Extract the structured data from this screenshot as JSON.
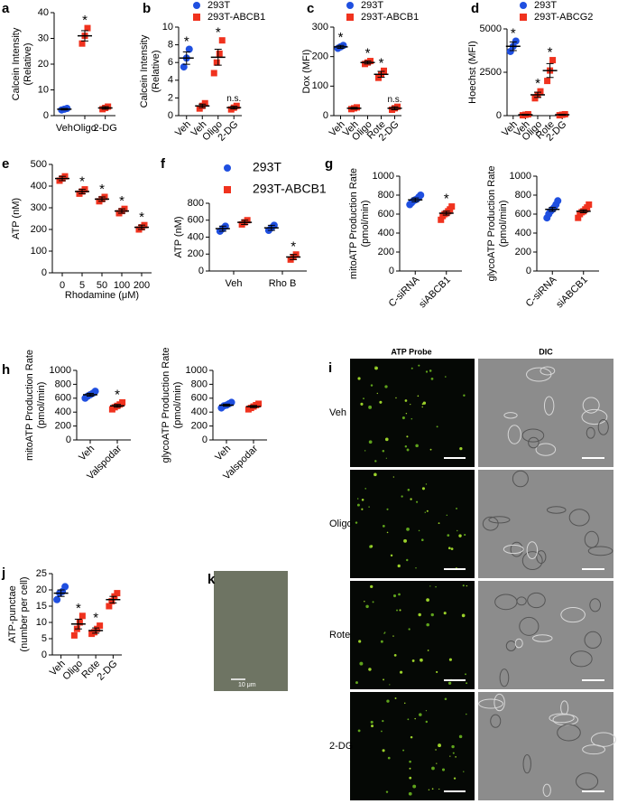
{
  "chart_data": [
    {
      "type": "dot",
      "panel": "a",
      "ylabel": [
        "Calcein Intensity",
        "(Relative)"
      ],
      "categories": [
        "Veh",
        "Oligo",
        "2-DG"
      ],
      "ylim": [
        0,
        40
      ],
      "yticks": [
        0,
        10,
        20,
        30,
        40
      ],
      "series": [
        {
          "color": "#1f4fe0",
          "marker": "circle",
          "values": [
            2.5,
            null,
            null
          ],
          "errors": [
            0.3,
            null,
            null
          ],
          "points": [
            [
              2.2,
              2.5,
              2.8
            ],
            null,
            null
          ],
          "annotations": [
            null,
            null,
            null
          ]
        },
        {
          "color": "#f0321e",
          "marker": "square",
          "values": [
            null,
            31,
            3
          ],
          "errors": [
            null,
            2,
            0.5
          ],
          "points": [
            null,
            [
              28,
              31,
              34
            ],
            [
              2.5,
              3,
              3.5
            ]
          ],
          "annotations": [
            null,
            "*",
            null
          ]
        }
      ]
    },
    {
      "type": "dot",
      "panel": "b",
      "ylabel": [
        "Calcein Intensity",
        "(Relative)"
      ],
      "categories": [
        "Veh",
        "Veh",
        "Oligo",
        "2-DG"
      ],
      "ylim": [
        0,
        10
      ],
      "yticks": [
        0,
        2,
        4,
        6,
        8,
        10
      ],
      "series": [
        {
          "name": "293T",
          "color": "#1f4fe0",
          "marker": "circle",
          "values": [
            6.5,
            null,
            null,
            null
          ],
          "errors": [
            0.7,
            null,
            null,
            null
          ],
          "points": [
            [
              5.5,
              6.5,
              7.5
            ],
            null,
            null,
            null
          ],
          "annotations": [
            "*",
            null,
            null,
            null
          ]
        },
        {
          "name": "293T-ABCB1",
          "color": "#f0321e",
          "marker": "square",
          "values": [
            null,
            1.1,
            6.6,
            0.9
          ],
          "errors": [
            null,
            0.2,
            0.9,
            0.15
          ],
          "points": [
            null,
            [
              0.8,
              1.1,
              1.4
            ],
            [
              4.8,
              6,
              7,
              8.5
            ],
            [
              0.7,
              0.9,
              1.1
            ]
          ],
          "annotations": [
            null,
            null,
            "*",
            "n.s."
          ]
        }
      ]
    },
    {
      "type": "dot",
      "panel": "c",
      "ylabel": [
        "Dox (MFI)"
      ],
      "categories": [
        "Veh",
        "Veh",
        "Oligo",
        "Rote",
        "2-DG"
      ],
      "ylim": [
        0,
        300
      ],
      "yticks": [
        0,
        100,
        200,
        300
      ],
      "series": [
        {
          "name": "293T",
          "color": "#1f4fe0",
          "marker": "circle",
          "values": [
            233,
            null,
            null,
            null,
            null
          ],
          "errors": [
            5,
            null,
            null,
            null,
            null
          ],
          "points": [
            [
              228,
              233,
              238
            ],
            null,
            null,
            null,
            null
          ],
          "annotations": [
            "*",
            null,
            null,
            null,
            null
          ]
        },
        {
          "name": "293T-ABCB1",
          "color": "#f0321e",
          "marker": "square",
          "values": [
            null,
            25,
            180,
            140,
            25
          ],
          "errors": [
            null,
            3,
            5,
            10,
            5
          ],
          "points": [
            null,
            [
              22,
              25,
              28
            ],
            [
              175,
              180,
              185
            ],
            [
              128,
              140,
              152
            ],
            [
              20,
              25,
              30
            ]
          ],
          "annotations": [
            null,
            null,
            "*",
            "*",
            "n.s."
          ]
        }
      ]
    },
    {
      "type": "dot",
      "panel": "d",
      "ylabel": [
        "Hoechst (MFI)"
      ],
      "categories": [
        "Veh",
        "Veh",
        "Oligo",
        "Rote",
        "2-DG"
      ],
      "ylim": [
        0,
        5000
      ],
      "yticks": [
        0,
        2500,
        5000
      ],
      "series": [
        {
          "name": "293T",
          "color": "#1f4fe0",
          "marker": "circle",
          "values": [
            4000,
            null,
            null,
            null,
            null
          ],
          "errors": [
            250,
            null,
            null,
            null,
            null
          ],
          "points": [
            [
              3700,
              4000,
              4300
            ],
            null,
            null,
            null,
            null
          ],
          "annotations": [
            "*",
            null,
            null,
            null,
            null
          ]
        },
        {
          "name": "293T-ABCG2",
          "color": "#f0321e",
          "marker": "square",
          "values": [
            null,
            50,
            1200,
            2600,
            50
          ],
          "errors": [
            null,
            30,
            150,
            400,
            30
          ],
          "points": [
            null,
            [
              20,
              50,
              80
            ],
            [
              1000,
              1200,
              1400
            ],
            [
              2000,
              2600,
              3200
            ],
            [
              20,
              50,
              80
            ]
          ],
          "annotations": [
            null,
            null,
            "*",
            "*",
            null
          ]
        }
      ]
    },
    {
      "type": "dot",
      "panel": "e",
      "ylabel": [
        "ATP (nM)"
      ],
      "xlabel": "Rhodamine (μM)",
      "categories": [
        "0",
        "5",
        "50",
        "100",
        "200"
      ],
      "ylim": [
        0,
        500
      ],
      "yticks": [
        0,
        100,
        200,
        300,
        400,
        500
      ],
      "series": [
        {
          "color": "#f0321e",
          "marker": "square",
          "values": [
            435,
            375,
            340,
            285,
            210
          ],
          "errors": [
            10,
            10,
            10,
            10,
            10
          ],
          "points": [
            [
              425,
              435,
              445
            ],
            [
              365,
              375,
              385
            ],
            [
              330,
              340,
              350
            ],
            [
              275,
              285,
              295
            ],
            [
              200,
              210,
              220
            ]
          ],
          "annotations": [
            null,
            "*",
            "*",
            "*",
            "*"
          ]
        }
      ]
    },
    {
      "type": "dot",
      "panel": "f",
      "ylabel": [
        "ATP (nM)"
      ],
      "categories": [
        "Veh",
        "Rho B"
      ],
      "ylim": [
        0,
        800
      ],
      "yticks": [
        0,
        200,
        400,
        600,
        800
      ],
      "series": [
        {
          "name": "293T",
          "color": "#1f4fe0",
          "marker": "circle",
          "values": [
            500,
            510
          ],
          "errors": [
            30,
            30
          ],
          "points": [
            [
              470,
              500,
              530
            ],
            [
              480,
              510,
              540
            ]
          ],
          "annotations": [
            null,
            null
          ]
        },
        {
          "name": "293T-ABCB1",
          "color": "#f0321e",
          "marker": "square",
          "values": [
            575,
            165
          ],
          "errors": [
            25,
            30
          ],
          "points": [
            [
              550,
              575,
              600
            ],
            [
              135,
              165,
              195
            ]
          ],
          "annotations": [
            null,
            "*"
          ]
        }
      ]
    },
    {
      "type": "dot",
      "panel": "g",
      "ylabel": [
        "mitoATP Production Rate",
        "(pmol/min)"
      ],
      "categories": [
        "C-siRNA",
        "siABCB1"
      ],
      "ylim": [
        0,
        1000
      ],
      "yticks": [
        0,
        200,
        400,
        600,
        800,
        1000
      ],
      "series": [
        {
          "color": "#1f4fe0",
          "marker": "circle",
          "values": [
            750,
            null
          ],
          "errors": [
            20,
            null
          ],
          "points": [
            [
              700,
              720,
              740,
              750,
              760,
              780,
              800
            ],
            null
          ],
          "annotations": [
            null,
            null
          ]
        },
        {
          "color": "#f0321e",
          "marker": "square",
          "values": [
            null,
            610
          ],
          "errors": [
            null,
            20
          ],
          "points": [
            null,
            [
              540,
              580,
              600,
              610,
              630,
              650,
              680
            ]
          ],
          "annotations": [
            null,
            "*"
          ]
        }
      ]
    },
    {
      "type": "dot",
      "ylabel": [
        "glycoATP Production Rate",
        "(pmol/min)"
      ],
      "categories": [
        "C-siRNA",
        "siABCB1"
      ],
      "ylim": [
        0,
        1000
      ],
      "yticks": [
        0,
        200,
        400,
        600,
        800,
        1000
      ],
      "series": [
        {
          "color": "#1f4fe0",
          "marker": "circle",
          "values": [
            650,
            null
          ],
          "errors": [
            20,
            null
          ],
          "points": [
            [
              560,
              600,
              630,
              650,
              670,
              700,
              740
            ],
            null
          ],
          "annotations": [
            null,
            null
          ]
        },
        {
          "color": "#f0321e",
          "marker": "square",
          "values": [
            null,
            630
          ],
          "errors": [
            null,
            15
          ],
          "points": [
            null,
            [
              560,
              600,
              620,
              630,
              650,
              670,
              700
            ]
          ],
          "annotations": [
            null,
            null
          ]
        }
      ]
    },
    {
      "type": "dot",
      "panel": "h",
      "ylabel": [
        "mitoATP Production Rate",
        "(pmol/min)"
      ],
      "categories": [
        "Veh",
        "Valspodar"
      ],
      "ylim": [
        0,
        1000
      ],
      "yticks": [
        0,
        200,
        400,
        600,
        800,
        1000
      ],
      "series": [
        {
          "color": "#1f4fe0",
          "marker": "circle",
          "values": [
            650,
            null
          ],
          "errors": [
            20,
            null
          ],
          "points": [
            [
              600,
              630,
              650,
              670,
              700
            ],
            null
          ],
          "annotations": [
            null,
            null
          ]
        },
        {
          "color": "#f0321e",
          "marker": "square",
          "values": [
            null,
            490
          ],
          "errors": [
            null,
            20
          ],
          "points": [
            null,
            [
              440,
              470,
              490,
              510,
              540
            ]
          ],
          "annotations": [
            null,
            "*"
          ]
        }
      ]
    },
    {
      "type": "dot",
      "ylabel": [
        "glycoATP Production Rate",
        "(pmol/min)"
      ],
      "categories": [
        "Veh",
        "Valspodar"
      ],
      "ylim": [
        0,
        1000
      ],
      "yticks": [
        0,
        200,
        400,
        600,
        800,
        1000
      ],
      "series": [
        {
          "color": "#1f4fe0",
          "marker": "circle",
          "values": [
            500,
            null
          ],
          "errors": [
            15,
            null
          ],
          "points": [
            [
              460,
              490,
              500,
              520,
              540
            ],
            null
          ],
          "annotations": [
            null,
            null
          ]
        },
        {
          "color": "#f0321e",
          "marker": "square",
          "values": [
            null,
            480
          ],
          "errors": [
            null,
            15
          ],
          "points": [
            null,
            [
              440,
              460,
              480,
              500,
              520
            ]
          ],
          "annotations": [
            null,
            null
          ]
        }
      ]
    },
    {
      "type": "dot",
      "panel": "j",
      "ylabel": [
        "ATP-punctae",
        "(number per cell)"
      ],
      "categories": [
        "Veh",
        "Oligo",
        "Rote",
        "2-DG"
      ],
      "ylim": [
        0,
        25
      ],
      "yticks": [
        0,
        5,
        10,
        15,
        20,
        25
      ],
      "series": [
        {
          "color": "#1f4fe0",
          "marker": "circle",
          "values": [
            19,
            null,
            null,
            null
          ],
          "errors": [
            1,
            null,
            null,
            null
          ],
          "points": [
            [
              17,
              19,
              19.5,
              21
            ],
            null,
            null,
            null
          ],
          "annotations": [
            null,
            null,
            null,
            null
          ]
        },
        {
          "color": "#f0321e",
          "marker": "square",
          "values": [
            null,
            9.5,
            7.5,
            17
          ],
          "errors": [
            null,
            1.5,
            0.8,
            1
          ],
          "points": [
            null,
            [
              6,
              8,
              10,
              12
            ],
            [
              6.5,
              7,
              8,
              9
            ],
            [
              15,
              16.5,
              18,
              19
            ]
          ],
          "annotations": [
            null,
            "*",
            "*",
            null
          ]
        }
      ]
    }
  ],
  "image_panels": {
    "k": {
      "label": "k",
      "scale_text": "10 μm"
    },
    "i": {
      "label": "i",
      "columns": [
        "ATP Probe",
        "DIC"
      ],
      "rows": [
        "Veh",
        "Oligo",
        "Rote",
        "2-DG"
      ]
    }
  }
}
